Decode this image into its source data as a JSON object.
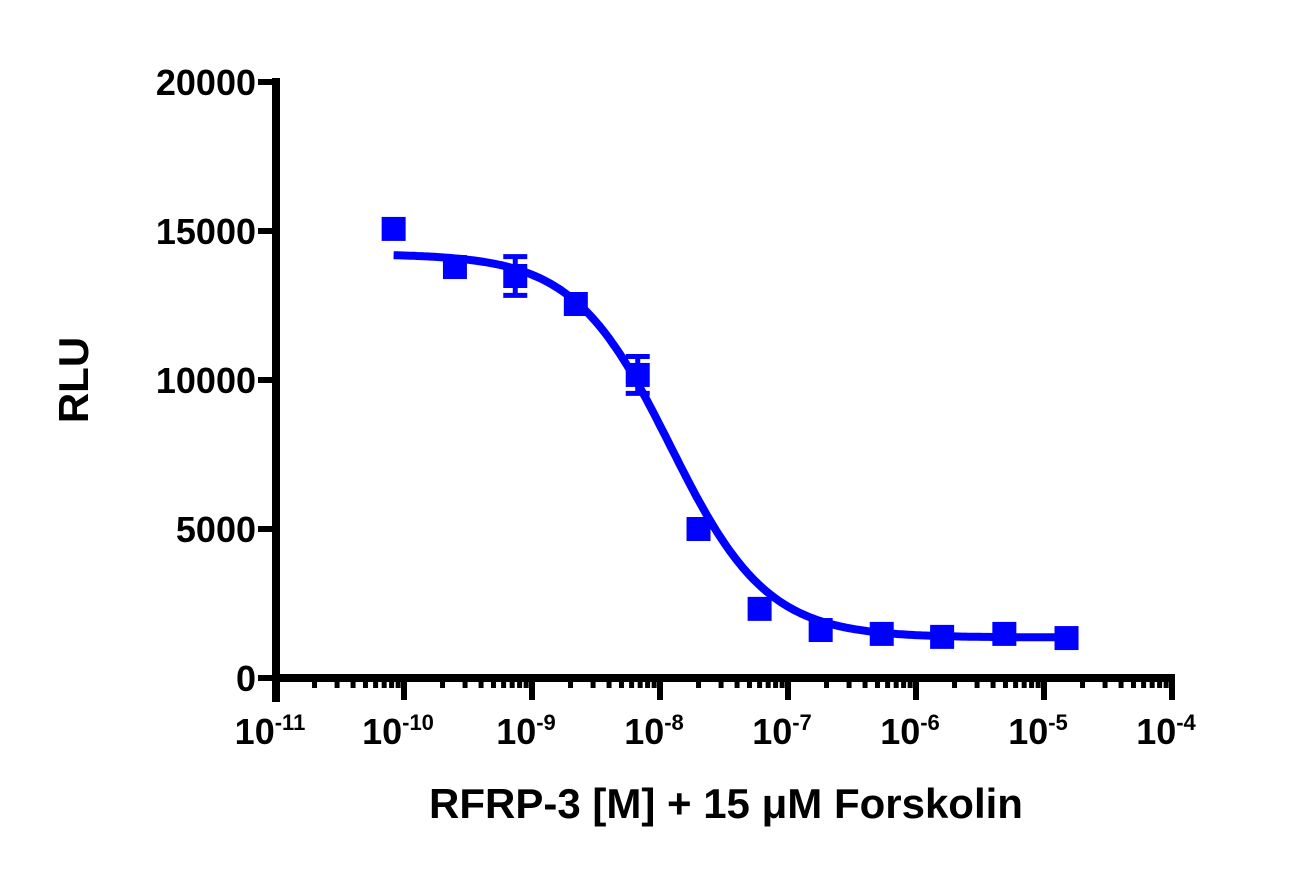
{
  "chart_data": {
    "type": "scatter",
    "title": "",
    "xlabel": "RFRP-3 [M] + 15 μM Forskolin",
    "ylabel": "RLU",
    "xscale": "log",
    "xlim": [
      1e-11,
      0.0001
    ],
    "ylim": [
      0,
      20000
    ],
    "grid": false,
    "legend": null,
    "x_ticks": [
      {
        "base": "10",
        "exp": "-11",
        "log": -11
      },
      {
        "base": "10",
        "exp": "-10",
        "log": -10
      },
      {
        "base": "10",
        "exp": "-9",
        "log": -9
      },
      {
        "base": "10",
        "exp": "-8",
        "log": -8
      },
      {
        "base": "10",
        "exp": "-7",
        "log": -7
      },
      {
        "base": "10",
        "exp": "-6",
        "log": -6
      },
      {
        "base": "10",
        "exp": "-5",
        "log": -5
      },
      {
        "base": "10",
        "exp": "-4",
        "log": -4
      }
    ],
    "y_ticks": [
      0,
      5000,
      10000,
      15000,
      20000
    ],
    "y_tick_labels": [
      "0",
      "5000",
      "10000",
      "15000",
      "20000"
    ],
    "series": [
      {
        "name": "RFRP-3",
        "color": "#0000ff",
        "marker": "square",
        "points": [
          {
            "x": 8.3e-11,
            "y": 15070,
            "err": 0
          },
          {
            "x": 2.5e-10,
            "y": 13790,
            "err": 0
          },
          {
            "x": 7.4e-10,
            "y": 13490,
            "err": 650
          },
          {
            "x": 2.2e-09,
            "y": 12550,
            "err": 0
          },
          {
            "x": 6.7e-09,
            "y": 10170,
            "err": 620
          },
          {
            "x": 2e-08,
            "y": 5000,
            "err": 0
          },
          {
            "x": 6e-08,
            "y": 2320,
            "err": 0
          },
          {
            "x": 1.8e-07,
            "y": 1610,
            "err": 0
          },
          {
            "x": 5.4e-07,
            "y": 1480,
            "err": 0
          },
          {
            "x": 1.6e-06,
            "y": 1380,
            "err": 0
          },
          {
            "x": 4.9e-06,
            "y": 1480,
            "err": 0
          },
          {
            "x": 1.5e-05,
            "y": 1340,
            "err": 0
          }
        ],
        "fit": {
          "model": "4PL",
          "top": 14230,
          "bottom": 1360,
          "logIC50": -7.92,
          "hill": -1.15,
          "x_start": 8.3e-11,
          "x_end": 1.5e-05
        }
      }
    ]
  }
}
